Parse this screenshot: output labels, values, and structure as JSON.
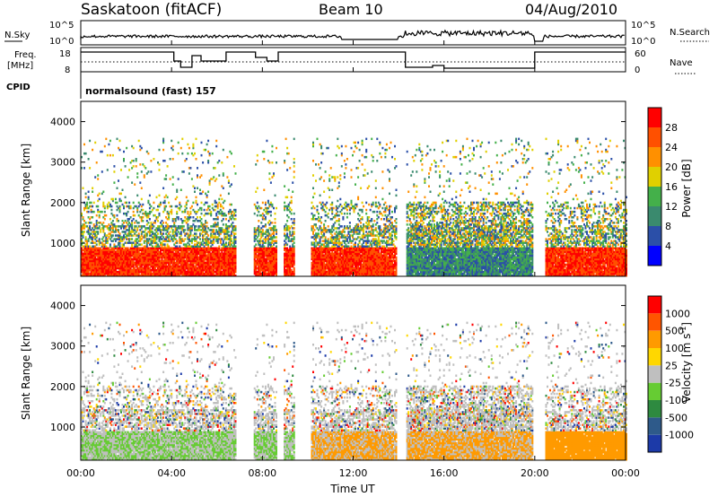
{
  "header": {
    "station": "Saskatoon (fitACF)",
    "beam": "Beam 10",
    "date": "04/Aug/2010"
  },
  "status_panel": {
    "nsky_label": "N.Sky",
    "nsky_ticks": [
      "10^5",
      "10^0"
    ],
    "nsearch_label": "N.Search",
    "nsearch_ticks": [
      "10^5",
      "10^0"
    ],
    "freq_label_1": "Freq.",
    "freq_label_2": "[MHz]",
    "freq_ticks": [
      "18",
      "8"
    ],
    "nave_label": "Nave",
    "nave_ticks": [
      "60",
      "0"
    ],
    "cpid_label": "CPID",
    "cpid_value": "normalsound (fast) 157"
  },
  "colors": {
    "power_scale": [
      "#0000ff",
      "#2b4fa8",
      "#3a8a6e",
      "#44b04a",
      "#e0d000",
      "#ff9000",
      "#ff5000",
      "#ff0000"
    ],
    "velocity_scale": [
      "#1c3aa8",
      "#2e5a8a",
      "#2e8a40",
      "#66cc33",
      "#bfbfbf",
      "#ffd700",
      "#ff9a00",
      "#ff5500",
      "#ff0000"
    ],
    "ground_scatter": "#bfbfbf"
  },
  "chart_data": [
    {
      "type": "heatmap",
      "name": "power",
      "ylabel": "Slant Range [km]",
      "yticks": [
        "4000",
        "3000",
        "2000",
        "1000"
      ],
      "ylim": [
        180,
        4500
      ],
      "xlabel": "",
      "xticks": [],
      "colorbar_label": "Power [dB]",
      "colorbar_ticks": [
        "28",
        "24",
        "20",
        "16",
        "12",
        "8",
        "4"
      ]
    },
    {
      "type": "heatmap",
      "name": "velocity",
      "ylabel": "Slant Range [km]",
      "yticks": [
        "4000",
        "3000",
        "2000",
        "1000"
      ],
      "ylim": [
        180,
        4500
      ],
      "xlabel": "Time UT",
      "xticks": [
        "00:00",
        "04:00",
        "08:00",
        "12:00",
        "16:00",
        "20:00",
        "00:00"
      ],
      "colorbar_label": "Velocity [m s",
      "colorbar_label_sup": "-1",
      "colorbar_label_end": "]",
      "colorbar_ticks": [
        "1000",
        "500",
        "100",
        "25",
        "-25",
        "-100",
        "-500",
        "-1000"
      ]
    }
  ]
}
